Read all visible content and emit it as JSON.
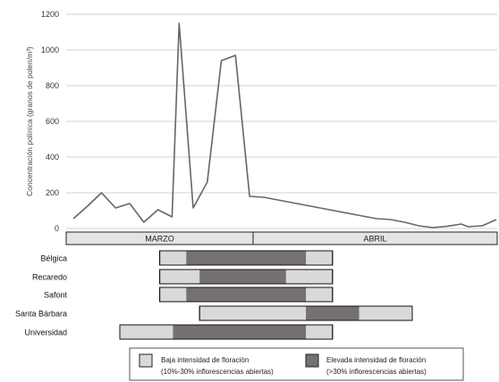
{
  "chart_data": {
    "type": "line",
    "ylabel": "Concentración polínica (granos de polen/m³)",
    "ylim": [
      0,
      1200
    ],
    "yticks": [
      0,
      200,
      400,
      600,
      800,
      1000,
      1200
    ],
    "grid": "horizontal",
    "x_day_range": [
      1,
      61
    ],
    "series": [
      {
        "points": [
          [
            1,
            55
          ],
          [
            3,
            125
          ],
          [
            5,
            200
          ],
          [
            7,
            115
          ],
          [
            9,
            140
          ],
          [
            11,
            35
          ],
          [
            13,
            105
          ],
          [
            15,
            65
          ],
          [
            16,
            1150
          ],
          [
            18,
            115
          ],
          [
            20,
            260
          ],
          [
            22,
            940
          ],
          [
            24,
            970
          ],
          [
            26,
            180
          ],
          [
            28,
            175
          ],
          [
            30,
            160
          ],
          [
            32,
            145
          ],
          [
            34,
            130
          ],
          [
            36,
            115
          ],
          [
            38,
            100
          ],
          [
            40,
            85
          ],
          [
            42,
            70
          ],
          [
            44,
            55
          ],
          [
            46,
            50
          ],
          [
            48,
            35
          ],
          [
            50,
            15
          ],
          [
            52,
            5
          ],
          [
            54,
            12
          ],
          [
            56,
            25
          ],
          [
            57,
            10
          ],
          [
            59,
            15
          ],
          [
            61,
            50
          ]
        ]
      }
    ],
    "months": [
      {
        "label": "MARZO",
        "start_day": 1,
        "end_day": 28
      },
      {
        "label": "ABRIL",
        "start_day": 28,
        "end_day": 61
      }
    ],
    "flowering": [
      {
        "label": "Bélgica",
        "low_start": 15,
        "high_start": 19,
        "high_end": 37,
        "low_end": 41
      },
      {
        "label": "Recaredo",
        "low_start": 15,
        "high_start": 21,
        "high_end": 34,
        "low_end": 41
      },
      {
        "label": "Safont",
        "low_start": 15,
        "high_start": 19,
        "high_end": 37,
        "low_end": 41
      },
      {
        "label": "Santa Bárbara",
        "low_start": 21,
        "high_start": 37,
        "high_end": 45,
        "low_end": 53
      },
      {
        "label": "Universidad",
        "low_start": 9,
        "high_start": 17,
        "high_end": 37,
        "low_end": 41
      }
    ],
    "legend": {
      "low": {
        "line1": "Baja intensidad de floración",
        "line2": "(10%-30% inflorescencias abiertas)",
        "color": "#d9d9d9"
      },
      "high": {
        "line1": "Elevada intensidad de floración",
        "line2": "(>30% inflorescencias abiertas)",
        "color": "#767171"
      }
    },
    "line_color": "#666666"
  }
}
